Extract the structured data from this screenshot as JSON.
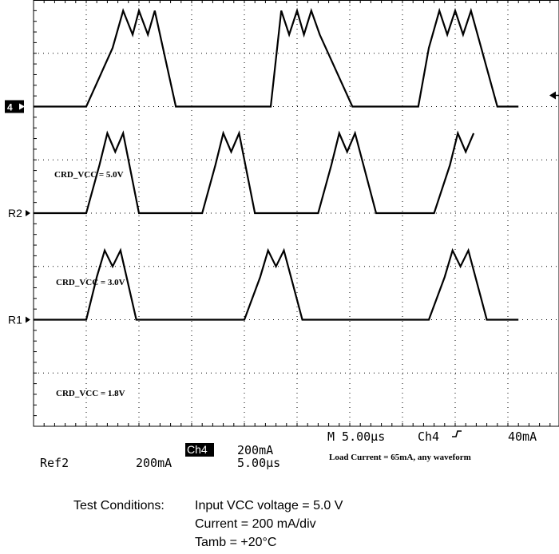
{
  "chart_data": {
    "type": "line",
    "title": "",
    "xlabel": "",
    "ylabel": "",
    "grid": true,
    "x_divisions": 10,
    "y_divisions": 8,
    "series": [
      {
        "name": "CRD_VCC = 5.0V",
        "marker": "4",
        "x_div": [
          0.0,
          1.0,
          1.5,
          1.7,
          1.88,
          2.0,
          2.17,
          2.3,
          2.7,
          4.5,
          4.7,
          4.85,
          5.0,
          5.13,
          5.27,
          5.43,
          6.05,
          7.3,
          7.5,
          7.7,
          7.85,
          8.0,
          8.15,
          8.3,
          8.8,
          9.2
        ],
        "y_div": [
          6.0,
          6.0,
          7.1,
          7.8,
          7.35,
          7.8,
          7.35,
          7.8,
          6.0,
          6.0,
          7.8,
          7.35,
          7.8,
          7.35,
          7.8,
          7.35,
          6.0,
          6.0,
          7.1,
          7.8,
          7.35,
          7.8,
          7.35,
          7.8,
          6.0,
          6.0
        ]
      },
      {
        "name": "CRD_VCC = 3.0V",
        "marker": "R2",
        "x_div": [
          0.0,
          1.0,
          1.25,
          1.4,
          1.55,
          1.7,
          2.0,
          3.2,
          3.45,
          3.6,
          3.75,
          3.9,
          4.2,
          5.4,
          5.65,
          5.8,
          5.95,
          6.1,
          6.5,
          7.6,
          7.9,
          8.05,
          8.2,
          8.35
        ],
        "y_div": [
          4.0,
          4.0,
          4.9,
          5.5,
          5.15,
          5.5,
          4.0,
          4.0,
          4.9,
          5.5,
          5.15,
          5.5,
          4.0,
          4.0,
          4.9,
          5.5,
          5.15,
          5.5,
          4.0,
          4.0,
          4.9,
          5.5,
          5.15,
          5.5
        ]
      },
      {
        "name": "CRD_VCC = 1.8V",
        "marker": "R1",
        "x_div": [
          0.0,
          1.0,
          1.2,
          1.35,
          1.5,
          1.65,
          1.95,
          4.0,
          4.3,
          4.45,
          4.6,
          4.75,
          5.1,
          7.5,
          7.8,
          7.95,
          8.1,
          8.25,
          8.6,
          9.2
        ],
        "y_div": [
          2.0,
          2.0,
          2.8,
          3.3,
          3.0,
          3.3,
          2.0,
          2.0,
          2.8,
          3.3,
          3.0,
          3.3,
          2.0,
          2.0,
          2.8,
          3.3,
          3.0,
          3.3,
          2.0,
          2.0
        ]
      }
    ],
    "annotations": {
      "timebase": "M 5.00µs",
      "trigger_source": "Ch4",
      "trigger_level": "40mA",
      "load_current": "Load Current = 65mA, any waveform",
      "ch4_tag": "Ch4",
      "ch4_scale": "200mA",
      "ref2_tag": "Ref2",
      "ref2_scale": "200mA",
      "ref2_time": "5.00µs"
    }
  },
  "test_conditions": {
    "label": "Test Conditions:",
    "lines": [
      "Input VCC voltage = 5.0 V",
      "Current = 200 mA/div",
      "Tamb = +20°C"
    ]
  },
  "colors": {
    "trace": "#000000",
    "grid": "#000000",
    "background": "#ffffff"
  }
}
